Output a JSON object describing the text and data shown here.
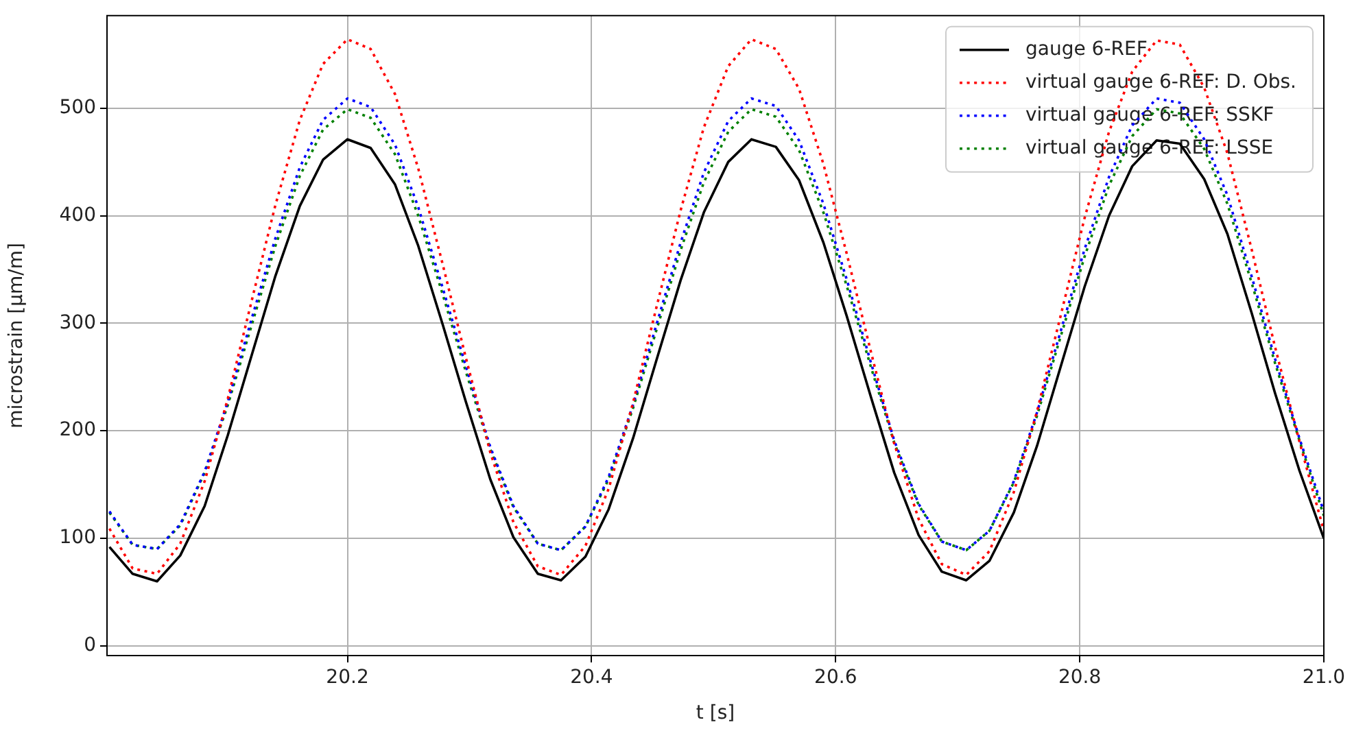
{
  "chart_data": {
    "type": "line",
    "xlabel": "t [s]",
    "ylabel": "microstrain [µm/m]",
    "x": [
      20.005,
      20.024,
      20.044,
      20.063,
      20.083,
      20.102,
      20.122,
      20.141,
      20.161,
      20.18,
      20.2,
      20.219,
      20.239,
      20.258,
      20.278,
      20.297,
      20.317,
      20.336,
      20.356,
      20.375,
      20.395,
      20.414,
      20.434,
      20.453,
      20.473,
      20.492,
      20.512,
      20.531,
      20.551,
      20.57,
      20.59,
      20.609,
      20.629,
      20.648,
      20.668,
      20.687,
      20.707,
      20.726,
      20.746,
      20.765,
      20.785,
      20.804,
      20.824,
      20.843,
      20.863,
      20.882,
      20.902,
      20.921,
      20.941,
      20.96,
      20.98,
      21.0
    ],
    "series": [
      {
        "name": "gauge 6-REF",
        "color": "#000000",
        "line_style": "solid",
        "values": [
          92,
          67,
          60,
          84,
          130,
          196,
          272,
          344,
          409,
          452,
          471,
          463,
          429,
          372,
          299,
          227,
          155,
          101,
          67,
          61,
          83,
          127,
          193,
          265,
          340,
          403,
          450,
          471,
          464,
          433,
          375,
          307,
          231,
          161,
          103,
          69,
          61,
          79,
          124,
          186,
          262,
          334,
          400,
          446,
          470,
          467,
          434,
          383,
          309,
          235,
          163,
          100
        ]
      },
      {
        "name": "virtual gauge 6-REF: D. Obs.",
        "color": "#ff0000",
        "line_style": "dotted",
        "values": [
          109,
          72,
          67,
          95,
          153,
          230,
          323,
          410,
          489,
          541,
          564,
          555,
          513,
          444,
          355,
          268,
          180,
          115,
          74,
          66,
          93,
          146,
          226,
          314,
          405,
          482,
          539,
          564,
          555,
          518,
          448,
          365,
          273,
          188,
          118,
          76,
          66,
          88,
          143,
          218,
          310,
          398,
          478,
          534,
          563,
          559,
          519,
          458,
          368,
          278,
          190,
          107
        ]
      },
      {
        "name": "virtual gauge 6-REF: SSKF",
        "color": "#0000ff",
        "line_style": "dotted",
        "values": [
          125,
          94,
          90,
          113,
          162,
          227,
          306,
          379,
          445,
          489,
          509,
          501,
          466,
          408,
          333,
          260,
          185,
          130,
          95,
          89,
          111,
          157,
          224,
          298,
          375,
          440,
          488,
          509,
          502,
          470,
          411,
          341,
          263,
          191,
          132,
          97,
          89,
          107,
          153,
          217,
          295,
          369,
          436,
          484,
          509,
          505,
          471,
          419,
          343,
          267,
          193,
          125
        ]
      },
      {
        "name": "virtual gauge 6-REF: LSSE",
        "color": "#008000",
        "line_style": "dotted",
        "values": [
          124,
          94,
          90,
          112,
          161,
          224,
          300,
          372,
          437,
          480,
          499,
          491,
          457,
          400,
          327,
          255,
          183,
          129,
          95,
          89,
          111,
          155,
          221,
          293,
          368,
          431,
          478,
          499,
          492,
          461,
          403,
          335,
          259,
          189,
          131,
          97,
          89,
          107,
          152,
          214,
          290,
          362,
          428,
          474,
          499,
          495,
          462,
          411,
          337,
          263,
          191,
          121
        ]
      }
    ],
    "xlim": [
      20.003,
      21.0
    ],
    "xticks": [
      20.2,
      20.4,
      20.6,
      20.8,
      {
        "value": 21.0,
        "label": "21.0"
      }
    ],
    "ylim": [
      -9,
      586
    ],
    "yticks": [
      0,
      100,
      200,
      300,
      400,
      500
    ],
    "grid": true,
    "legend": "top right",
    "marker": "none"
  }
}
